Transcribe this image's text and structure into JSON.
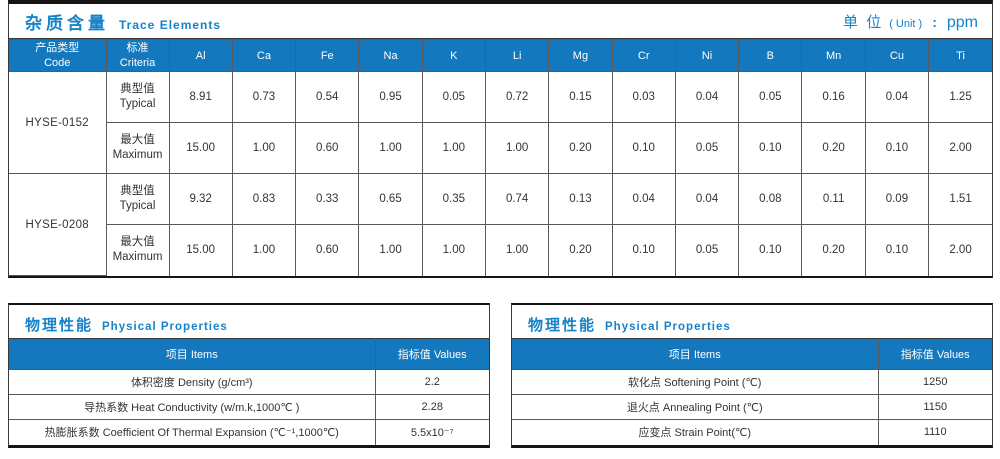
{
  "colors": {
    "header_blue": "#1478be",
    "title_blue": "#1583c8",
    "cell_border": "#595959",
    "outer_border": "#141414"
  },
  "trace": {
    "title_zh": "杂质含量",
    "title_en": "Trace Elements",
    "unit_zh": "单 位",
    "unit_en": "( Unit )",
    "unit_colon": ":",
    "unit_value": "ppm",
    "header": {
      "code_zh": "产品类型",
      "code_en": "Code",
      "criteria_zh": "标准",
      "criteria_en": "Criteria",
      "elements": [
        "Al",
        "Ca",
        "Fe",
        "Na",
        "K",
        "Li",
        "Mg",
        "Cr",
        "Ni",
        "B",
        "Mn",
        "Cu",
        "Ti"
      ]
    },
    "products": [
      {
        "code": "HYSE-0152",
        "rows": [
          {
            "criteria_zh": "典型值",
            "criteria_en": "Typical",
            "values": [
              "8.91",
              "0.73",
              "0.54",
              "0.95",
              "0.05",
              "0.72",
              "0.15",
              "0.03",
              "0.04",
              "0.05",
              "0.16",
              "0.04",
              "1.25"
            ]
          },
          {
            "criteria_zh": "最大值",
            "criteria_en": "Maximum",
            "values": [
              "15.00",
              "1.00",
              "0.60",
              "1.00",
              "1.00",
              "1.00",
              "0.20",
              "0.10",
              "0.05",
              "0.10",
              "0.20",
              "0.10",
              "2.00"
            ]
          }
        ]
      },
      {
        "code": "HYSE-0208",
        "rows": [
          {
            "criteria_zh": "典型值",
            "criteria_en": "Typical",
            "values": [
              "9.32",
              "0.83",
              "0.33",
              "0.65",
              "0.35",
              "0.74",
              "0.13",
              "0.04",
              "0.04",
              "0.08",
              "0.11",
              "0.09",
              "1.51"
            ]
          },
          {
            "criteria_zh": "最大值",
            "criteria_en": "Maximum",
            "values": [
              "15.00",
              "1.00",
              "0.60",
              "1.00",
              "1.00",
              "1.00",
              "0.20",
              "0.10",
              "0.05",
              "0.10",
              "0.20",
              "0.10",
              "2.00"
            ]
          }
        ]
      }
    ]
  },
  "physical_left": {
    "title_zh": "物理性能",
    "title_en": "Physical Properties",
    "col_items_zh": "项目",
    "col_items_en": "Items",
    "col_values_zh": "指标值",
    "col_values_en": "Values",
    "rows": [
      {
        "item": "体积密度 Density (g/cm³)",
        "value": "2.2"
      },
      {
        "item": "导热系数 Heat Conductivity (w/m.k,1000℃ )",
        "value": "2.28"
      },
      {
        "item": "热膨胀系数 Coefficient Of Thermal Expansion (℃⁻¹,1000℃)",
        "value": "5.5x10⁻⁷"
      }
    ]
  },
  "physical_right": {
    "title_zh": "物理性能",
    "title_en": "Physical Properties",
    "col_items_zh": "项目",
    "col_items_en": "Items",
    "col_values_zh": "指标值",
    "col_values_en": "Values",
    "rows": [
      {
        "item": "软化点 Softening Point (℃)",
        "value": "1250"
      },
      {
        "item": "退火点 Annealing Point (℃)",
        "value": "1150"
      },
      {
        "item": "应变点 Strain Point(℃)",
        "value": "1110"
      }
    ]
  }
}
